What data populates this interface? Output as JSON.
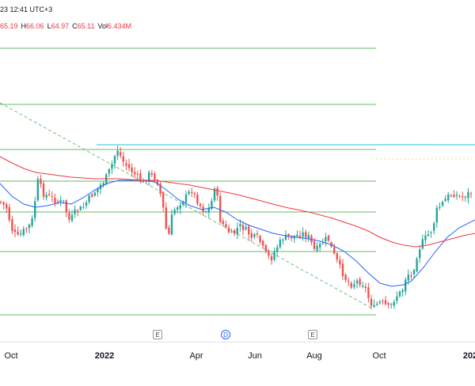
{
  "header": {
    "time_text": "23 12:41 UTC+3"
  },
  "ohlc": {
    "open_value": "65.19",
    "high_label": "H",
    "high_value": "66.06",
    "low_label": "L",
    "low_value": "64.97",
    "close_label": "C",
    "close_value": "65.11",
    "volume_label": "Vol",
    "volume_value": "6.434M"
  },
  "x_axis": {
    "labels": [
      "Oct",
      "2022",
      "Apr",
      "Jun",
      "Aug",
      "Oct",
      "202"
    ]
  },
  "events": {
    "earnings_label": "E",
    "dividend_label": "D"
  },
  "colors": {
    "up": "#26a69a",
    "down": "#ef5350",
    "ma_fast": "#2962ff",
    "ma_slow": "#f23645",
    "level_lines": "#4caf50",
    "cyan_line": "#26c6da",
    "trendline": "#4caf50"
  },
  "chart_data": {
    "type": "candlestick",
    "x_ticks": [
      "Oct",
      "2022",
      "Apr",
      "Jun",
      "Aug",
      "Oct",
      "202"
    ],
    "series": [
      {
        "type": "candlestick"
      },
      {
        "type": "line"
      },
      {
        "type": "line"
      }
    ]
  }
}
